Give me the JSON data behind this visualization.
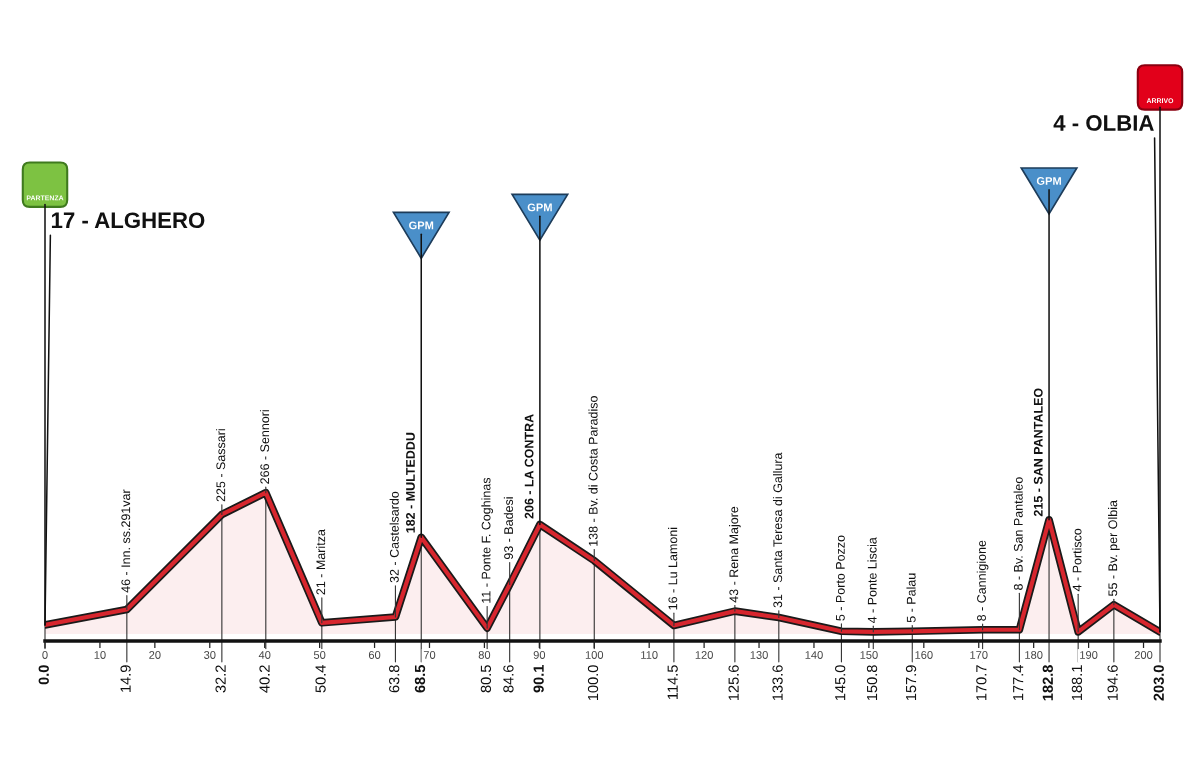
{
  "chart_data": {
    "type": "area",
    "x": [
      0.0,
      14.9,
      32.2,
      40.2,
      50.4,
      63.8,
      68.5,
      80.5,
      84.6,
      90.1,
      100.0,
      114.5,
      125.6,
      133.6,
      145.0,
      150.8,
      157.9,
      170.7,
      177.4,
      182.8,
      188.1,
      194.6,
      203.0
    ],
    "values": [
      17,
      46,
      225,
      266,
      21,
      32,
      182,
      11,
      93,
      206,
      138,
      16,
      43,
      31,
      5,
      4,
      5,
      8,
      8,
      215,
      4,
      55,
      4
    ],
    "value_labels": [
      null,
      "46 - Inn. ss.291var",
      "225 - Sassari",
      "266 - Sennori",
      "21 - Maritza",
      "32 - Castelsardo",
      "182 - MULTEDDU",
      "11 - Ponte F. Coghinas",
      "93 - Badesi",
      "206 - LA CONTRA",
      "138 - Bv. di Costa Paradiso",
      "16 - Lu Lamoni",
      "43 - Rena Majore",
      "31 - Santa Teresa di Gallura",
      "5 - Porto Pozzo",
      "4 - Ponte Liscia",
      "5 - Palau",
      "8 - Cannigione",
      "8 - Bv. San Pantaleo",
      "215 - SAN PANTALEO",
      "4 - Portisco",
      "55 - Bv. per Olbia",
      null
    ],
    "color": "#d7262e",
    "xlim": [
      0,
      203
    ],
    "xticks": [
      0,
      10,
      20,
      30,
      40,
      50,
      60,
      70,
      80,
      90,
      100,
      110,
      120,
      130,
      140,
      150,
      160,
      170,
      180,
      190,
      200
    ],
    "tick_labels": "x",
    "annotations": [
      {
        "text": "17 - ALGHERO",
        "x": 0.0,
        "y": 17
      },
      {
        "text": "PARTENZA",
        "x": 0.0,
        "y": 17
      },
      {
        "text": "GPM",
        "x": 68.5,
        "y": 182
      },
      {
        "text": "GPM",
        "x": 90.1,
        "y": 206
      },
      {
        "text": "GPM",
        "x": 182.8,
        "y": 215
      },
      {
        "text": "4 - OLBIA",
        "x": 203.0,
        "y": 4
      },
      {
        "text": "ARRIVO",
        "x": 203.0,
        "y": 4
      },
      {
        "text": "0.0",
        "x": 0.0
      },
      {
        "text": "14.9",
        "x": 14.9
      },
      {
        "text": "32.2",
        "x": 32.2
      },
      {
        "text": "40.2",
        "x": 40.2
      },
      {
        "text": "50.4",
        "x": 50.4
      },
      {
        "text": "63.8",
        "x": 63.8
      },
      {
        "text": "68.5",
        "x": 68.5
      },
      {
        "text": "80.5",
        "x": 80.5
      },
      {
        "text": "84.6",
        "x": 84.6
      },
      {
        "text": "90.1",
        "x": 90.1
      },
      {
        "text": "100.0",
        "x": 100.0
      },
      {
        "text": "114.5",
        "x": 114.5
      },
      {
        "text": "125.6",
        "x": 125.6
      },
      {
        "text": "133.6",
        "x": 133.6
      },
      {
        "text": "145.0",
        "x": 145.0
      },
      {
        "text": "150.8",
        "x": 150.8
      },
      {
        "text": "157.9",
        "x": 157.9
      },
      {
        "text": "170.7",
        "x": 170.7
      },
      {
        "text": "177.4",
        "x": 177.4
      },
      {
        "text": "182.8",
        "x": 182.8
      },
      {
        "text": "188.1",
        "x": 188.1
      },
      {
        "text": "194.6",
        "x": 194.6
      },
      {
        "text": "203.0",
        "x": 203.0
      }
    ]
  }
}
